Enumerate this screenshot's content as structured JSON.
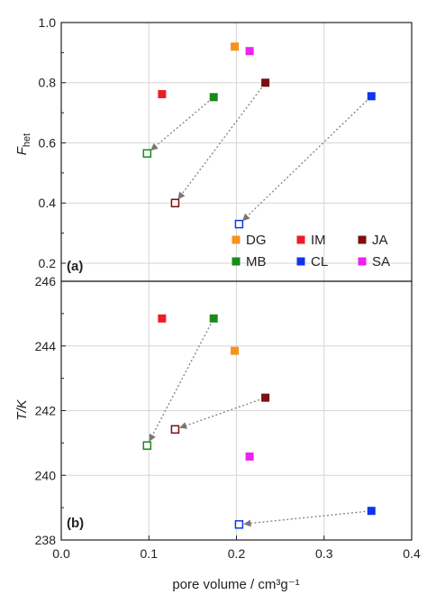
{
  "chart_data": [
    {
      "type": "scatter",
      "panel_label": "(a)",
      "ylabel": "F",
      "ylabel_sub": "het",
      "xlabel": "",
      "xlim": [
        0.0,
        0.4
      ],
      "ylim": [
        0.14,
        1.0
      ],
      "yticks": [
        0.2,
        0.4,
        0.6,
        0.8,
        1.0
      ],
      "ytick_labels": [
        "0.2",
        "0.4",
        "0.6",
        "0.8",
        "1.0"
      ],
      "grid": true,
      "legend": {
        "position": "bottom-right",
        "entries": [
          {
            "label": "DG",
            "color": "#f5921e"
          },
          {
            "label": "IM",
            "color": "#ee1c25"
          },
          {
            "label": "JA",
            "color": "#7a1010"
          },
          {
            "label": "MB",
            "color": "#1a8a1a"
          },
          {
            "label": "CL",
            "color": "#1034f0"
          },
          {
            "label": "SA",
            "color": "#ee22ee"
          }
        ]
      },
      "series": [
        {
          "name": "DG",
          "color": "#f5921e",
          "points": [
            {
              "x": 0.198,
              "y": 0.92,
              "filled": true
            }
          ]
        },
        {
          "name": "IM",
          "color": "#ee1c25",
          "points": [
            {
              "x": 0.115,
              "y": 0.762,
              "filled": true
            }
          ]
        },
        {
          "name": "JA",
          "color": "#7a1010",
          "points": [
            {
              "x": 0.233,
              "y": 0.8,
              "filled": true
            },
            {
              "x": 0.13,
              "y": 0.4,
              "filled": false
            }
          ]
        },
        {
          "name": "MB",
          "color": "#1a8a1a",
          "points": [
            {
              "x": 0.174,
              "y": 0.752,
              "filled": true
            },
            {
              "x": 0.098,
              "y": 0.565,
              "filled": false
            }
          ]
        },
        {
          "name": "CL",
          "color": "#1034f0",
          "points": [
            {
              "x": 0.354,
              "y": 0.755,
              "filled": true
            },
            {
              "x": 0.203,
              "y": 0.33,
              "filled": false
            }
          ]
        },
        {
          "name": "SA",
          "color": "#ee22ee",
          "points": [
            {
              "x": 0.215,
              "y": 0.905,
              "filled": true
            }
          ]
        }
      ],
      "arrows": [
        {
          "from": [
            0.174,
            0.752
          ],
          "to": [
            0.098,
            0.565
          ]
        },
        {
          "from": [
            0.233,
            0.8
          ],
          "to": [
            0.13,
            0.4
          ]
        },
        {
          "from": [
            0.354,
            0.755
          ],
          "to": [
            0.203,
            0.33
          ]
        }
      ]
    },
    {
      "type": "scatter",
      "panel_label": "(b)",
      "ylabel": "T/K",
      "xlabel": "pore volume / cm³g⁻¹",
      "xlim": [
        0.0,
        0.4
      ],
      "ylim": [
        238.0,
        246.0
      ],
      "xticks": [
        0.0,
        0.1,
        0.2,
        0.3,
        0.4
      ],
      "xtick_labels": [
        "0.0",
        "0.1",
        "0.2",
        "0.3",
        "0.4"
      ],
      "yticks": [
        238,
        240,
        242,
        244,
        246
      ],
      "ytick_labels": [
        "238",
        "240",
        "242",
        "244",
        "246"
      ],
      "grid": true,
      "series": [
        {
          "name": "DG",
          "color": "#f5921e",
          "points": [
            {
              "x": 0.198,
              "y": 243.85,
              "filled": true
            }
          ]
        },
        {
          "name": "IM",
          "color": "#ee1c25",
          "points": [
            {
              "x": 0.115,
              "y": 244.85,
              "filled": true
            }
          ]
        },
        {
          "name": "JA",
          "color": "#7a1010",
          "points": [
            {
              "x": 0.233,
              "y": 242.4,
              "filled": true
            },
            {
              "x": 0.13,
              "y": 241.42,
              "filled": false
            }
          ]
        },
        {
          "name": "MB",
          "color": "#1a8a1a",
          "points": [
            {
              "x": 0.174,
              "y": 244.85,
              "filled": true
            },
            {
              "x": 0.098,
              "y": 240.92,
              "filled": false
            }
          ]
        },
        {
          "name": "CL",
          "color": "#1034f0",
          "points": [
            {
              "x": 0.354,
              "y": 238.9,
              "filled": true
            },
            {
              "x": 0.203,
              "y": 238.48,
              "filled": false
            }
          ]
        },
        {
          "name": "SA",
          "color": "#ee22ee",
          "points": [
            {
              "x": 0.215,
              "y": 240.58,
              "filled": true
            }
          ]
        }
      ],
      "arrows": [
        {
          "from": [
            0.174,
            244.85
          ],
          "to": [
            0.098,
            240.92
          ]
        },
        {
          "from": [
            0.233,
            242.4
          ],
          "to": [
            0.13,
            241.42
          ]
        },
        {
          "from": [
            0.354,
            238.9
          ],
          "to": [
            0.203,
            238.48
          ]
        }
      ]
    }
  ]
}
